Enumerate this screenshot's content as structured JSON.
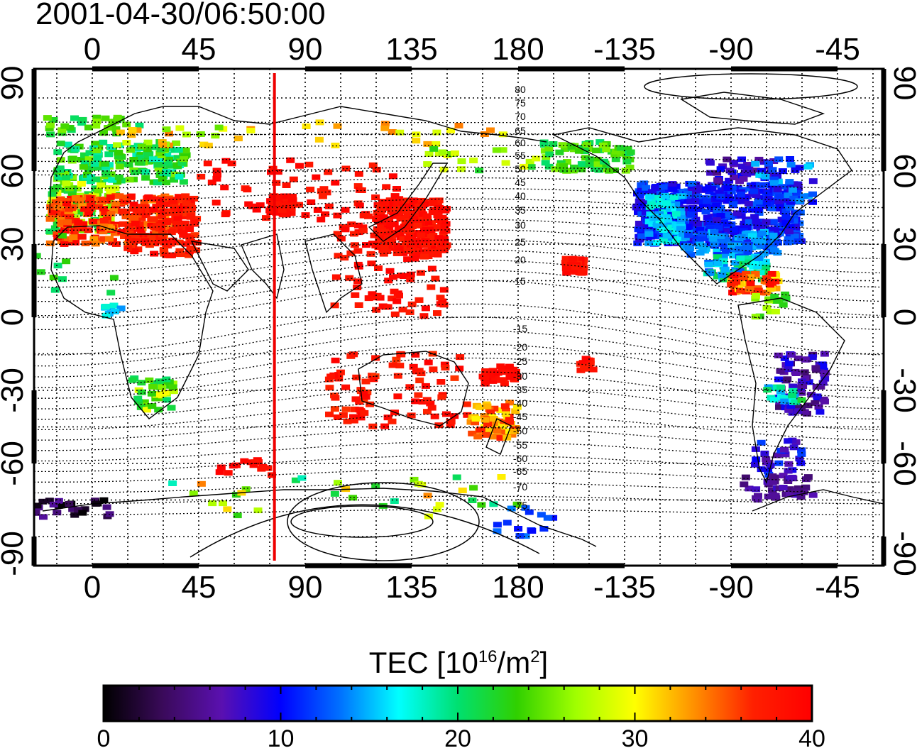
{
  "timestamp": "2001-04-30/06:50:00",
  "map": {
    "lon_ticks_top": [
      "0",
      "45",
      "90",
      "135",
      "180",
      "-135",
      "-90",
      "-45"
    ],
    "lon_ticks_bottom": [
      "0",
      "45",
      "90",
      "135",
      "180",
      "-135",
      "-90",
      "-45"
    ],
    "lat_ticks_left": [
      "90",
      "60",
      "30",
      "0",
      "-30",
      "-60",
      "-90"
    ],
    "lat_ticks_right": [
      "90",
      "60",
      "30",
      "0",
      "-30",
      "-60",
      "-90"
    ],
    "magnetic_contour_labels": [
      "80",
      "75",
      "70",
      "65",
      "60",
      "55",
      "50",
      "45",
      "40",
      "35",
      "30",
      "25",
      "20",
      "15",
      "-15",
      "-20",
      "-25",
      "-30",
      "-35",
      "-40",
      "-45",
      "-50",
      "-55",
      "-60",
      "-65",
      "-70",
      "-75"
    ],
    "terminator_color": "#ee0000",
    "terminator_longitude": 77
  },
  "colorbar": {
    "label_prefix": "TEC  [10",
    "label_sup1": "16",
    "label_mid": "/m",
    "label_sup2": "2",
    "label_suffix": "]",
    "ticks": [
      "0",
      "10",
      "20",
      "30",
      "40"
    ],
    "min": 0,
    "max": 40,
    "stops": [
      "#000000",
      "#3a0a5a",
      "#5a10b0",
      "#0000ff",
      "#0070ff",
      "#00ffff",
      "#00e070",
      "#30d000",
      "#a0ff00",
      "#ffff00",
      "#ff9000",
      "#ff2000",
      "#ff0000"
    ]
  }
}
